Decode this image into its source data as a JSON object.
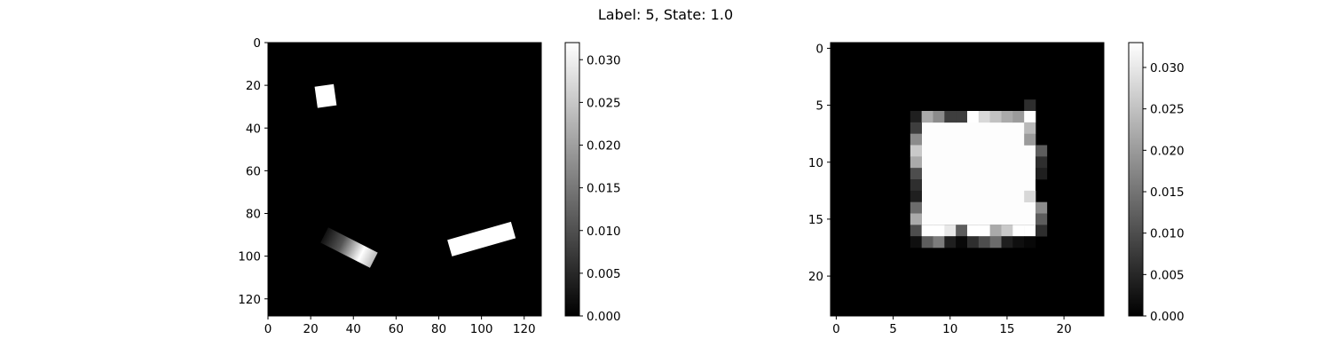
{
  "figure": {
    "title": "Label: 5, State: 1.0"
  },
  "chart_data": [
    {
      "type": "heatmap",
      "colormap": "gray",
      "grid": false,
      "size": [
        128,
        128
      ],
      "xlim": [
        0,
        128
      ],
      "ylim": [
        128,
        0
      ],
      "xticks": [
        0,
        20,
        40,
        60,
        80,
        100,
        120
      ],
      "yticks": [
        0,
        20,
        40,
        60,
        80,
        100,
        120
      ],
      "colorbar": {
        "min": 0.0,
        "max": 0.032,
        "ticks": [
          0.0,
          0.005,
          0.01,
          0.015,
          0.02,
          0.025,
          0.03
        ]
      },
      "shapes": [
        {
          "label": "small square",
          "center": [
            27,
            25
          ],
          "size": [
            9,
            10
          ],
          "angle_deg": -8,
          "value": 0.032,
          "gradient": false
        },
        {
          "label": "gradient bar",
          "center": [
            38,
            96
          ],
          "size": [
            26,
            8
          ],
          "angle_deg": 27,
          "value": 0.032,
          "gradient": true
        },
        {
          "label": "white bar",
          "center": [
            100,
            92
          ],
          "size": [
            31,
            8
          ],
          "angle_deg": -16,
          "value": 0.032,
          "gradient": false
        }
      ]
    },
    {
      "type": "heatmap",
      "colormap": "gray",
      "grid": false,
      "size": [
        24,
        24
      ],
      "xlim": [
        0,
        24
      ],
      "ylim": [
        24,
        0
      ],
      "xticks": [
        0,
        5,
        10,
        15,
        20
      ],
      "yticks": [
        0,
        5,
        10,
        15,
        20
      ],
      "colorbar": {
        "min": 0.0,
        "max": 0.033,
        "ticks": [
          0.0,
          0.005,
          0.01,
          0.015,
          0.02,
          0.025,
          0.03
        ]
      },
      "bright_block": {
        "rows": [
          7,
          15
        ],
        "cols": [
          8,
          17
        ],
        "value": 0.033
      },
      "edge_cells": [
        [
          5,
          17,
          0.006
        ],
        [
          6,
          7,
          0.004
        ],
        [
          6,
          8,
          0.022
        ],
        [
          6,
          9,
          0.018
        ],
        [
          6,
          10,
          0.008
        ],
        [
          6,
          11,
          0.008
        ],
        [
          6,
          12,
          0.033
        ],
        [
          6,
          13,
          0.028
        ],
        [
          6,
          14,
          0.025
        ],
        [
          6,
          15,
          0.022
        ],
        [
          6,
          16,
          0.02
        ],
        [
          6,
          17,
          0.033
        ],
        [
          7,
          7,
          0.008
        ],
        [
          7,
          17,
          0.024
        ],
        [
          8,
          7,
          0.018
        ],
        [
          8,
          17,
          0.02
        ],
        [
          9,
          7,
          0.026
        ],
        [
          9,
          18,
          0.012
        ],
        [
          10,
          7,
          0.022
        ],
        [
          10,
          18,
          0.006
        ],
        [
          11,
          7,
          0.01
        ],
        [
          11,
          18,
          0.004
        ],
        [
          12,
          7,
          0.006
        ],
        [
          13,
          7,
          0.004
        ],
        [
          13,
          17,
          0.028
        ],
        [
          14,
          7,
          0.014
        ],
        [
          14,
          18,
          0.018
        ],
        [
          15,
          7,
          0.022
        ],
        [
          15,
          18,
          0.012
        ],
        [
          16,
          7,
          0.01
        ],
        [
          16,
          8,
          0.033
        ],
        [
          16,
          9,
          0.033
        ],
        [
          16,
          10,
          0.03
        ],
        [
          16,
          11,
          0.012
        ],
        [
          16,
          12,
          0.033
        ],
        [
          16,
          13,
          0.033
        ],
        [
          16,
          14,
          0.022
        ],
        [
          16,
          15,
          0.026
        ],
        [
          16,
          16,
          0.033
        ],
        [
          16,
          17,
          0.033
        ],
        [
          16,
          18,
          0.006
        ],
        [
          17,
          7,
          0.002
        ],
        [
          17,
          8,
          0.012
        ],
        [
          17,
          9,
          0.016
        ],
        [
          17,
          10,
          0.004
        ],
        [
          17,
          11,
          0.001
        ],
        [
          17,
          12,
          0.006
        ],
        [
          17,
          13,
          0.01
        ],
        [
          17,
          14,
          0.014
        ],
        [
          17,
          15,
          0.004
        ],
        [
          17,
          16,
          0.002
        ],
        [
          17,
          17,
          0.001
        ]
      ]
    }
  ]
}
